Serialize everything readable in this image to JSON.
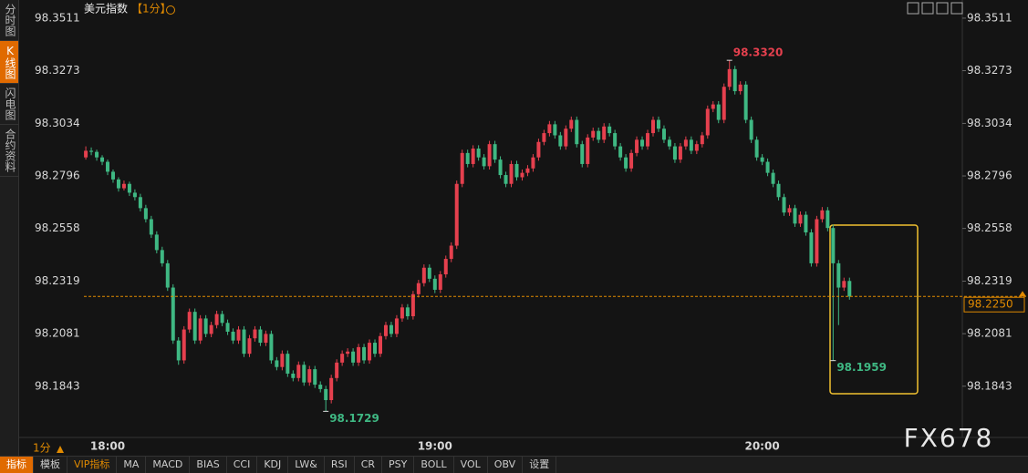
{
  "sidebar_tabs": [
    "分时图",
    "K线图",
    "闪电图",
    "合约资料"
  ],
  "header": {
    "title": "美元指数",
    "period": "【1分】"
  },
  "period_switch": "1分",
  "toolbar": [
    "指标",
    "模板",
    "VIP指标",
    "MA",
    "MACD",
    "BIAS",
    "CCI",
    "KDJ",
    "LW&",
    "RSI",
    "CR",
    "PSY",
    "BOLL",
    "VOL",
    "OBV",
    "设置"
  ],
  "watermark": "FX678",
  "chart_data": {
    "type": "candlestick",
    "up_color": "#e5404e",
    "down_color": "#3fb883",
    "ylim": [
      98.1652,
      98.3552
    ],
    "yticks": [
      98.3511,
      98.3273,
      98.3034,
      98.2796,
      98.2558,
      98.2319,
      98.2081,
      98.1843
    ],
    "categories": [
      null,
      null,
      null,
      null,
      "18:00",
      null,
      null,
      null,
      null,
      null,
      null,
      null,
      null,
      null,
      null,
      null,
      null,
      null,
      null,
      null,
      null,
      null,
      null,
      null,
      null,
      null,
      null,
      null,
      null,
      null,
      null,
      null,
      null,
      null,
      null,
      null,
      null,
      null,
      null,
      null,
      null,
      null,
      null,
      null,
      null,
      null,
      null,
      null,
      null,
      null,
      null,
      null,
      null,
      null,
      null,
      null,
      null,
      null,
      null,
      null,
      null,
      null,
      null,
      null,
      "19:00",
      null,
      null,
      null,
      null,
      null,
      null,
      null,
      null,
      null,
      null,
      null,
      null,
      null,
      null,
      null,
      null,
      null,
      null,
      null,
      null,
      null,
      null,
      null,
      null,
      null,
      null,
      null,
      null,
      null,
      null,
      null,
      null,
      null,
      null,
      null,
      null,
      null,
      null,
      null,
      null,
      null,
      null,
      null,
      null,
      null,
      null,
      null,
      null,
      null,
      null,
      null,
      null,
      null,
      null,
      null,
      null,
      null,
      null,
      null,
      "20:00",
      null,
      null,
      null,
      null,
      null,
      null,
      null,
      null,
      null,
      null,
      null,
      null,
      null,
      null,
      null,
      null
    ],
    "open": [
      98.288,
      98.291,
      98.2905,
      98.288,
      98.286,
      98.2815,
      98.278,
      98.274,
      98.276,
      98.272,
      98.27,
      98.265,
      98.26,
      98.253,
      98.246,
      98.24,
      98.229,
      98.205,
      98.196,
      98.21,
      98.218,
      98.205,
      98.215,
      98.208,
      98.212,
      98.217,
      98.213,
      98.209,
      98.205,
      98.21,
      98.199,
      98.206,
      98.21,
      98.204,
      98.208,
      98.196,
      98.193,
      98.199,
      98.19,
      98.188,
      98.194,
      98.186,
      98.192,
      98.185,
      98.183,
      98.178,
      98.188,
      98.195,
      98.199,
      98.2,
      98.195,
      98.202,
      98.196,
      98.204,
      98.199,
      98.207,
      98.212,
      98.208,
      98.215,
      98.22,
      98.216,
      98.226,
      98.231,
      98.238,
      98.233,
      98.228,
      98.235,
      98.242,
      98.248,
      98.276,
      98.29,
      98.285,
      98.292,
      98.288,
      98.284,
      98.294,
      98.287,
      98.28,
      98.276,
      98.285,
      98.279,
      98.281,
      98.283,
      98.288,
      98.295,
      98.299,
      98.303,
      98.298,
      98.293,
      98.301,
      98.305,
      98.294,
      98.285,
      98.297,
      98.3,
      98.296,
      98.302,
      98.299,
      98.293,
      98.288,
      98.283,
      98.29,
      98.296,
      98.293,
      98.299,
      98.305,
      98.301,
      98.296,
      98.293,
      98.287,
      98.293,
      98.296,
      98.291,
      98.294,
      98.298,
      98.31,
      98.312,
      98.305,
      98.32,
      98.328,
      98.318,
      98.321,
      98.305,
      98.296,
      98.288,
      98.286,
      98.281,
      98.276,
      98.27,
      98.263,
      98.265,
      98.258,
      98.262,
      98.254,
      98.24,
      98.26,
      98.264,
      98.256,
      98.24,
      98.229,
      98.232
    ],
    "high": [
      98.293,
      98.2925,
      98.2915,
      98.289,
      98.287,
      98.2825,
      98.279,
      98.2775,
      98.277,
      98.2735,
      98.2715,
      98.2665,
      98.2615,
      98.2545,
      98.2475,
      98.2415,
      98.2305,
      98.2065,
      98.2115,
      98.2195,
      98.2195,
      98.2165,
      98.2165,
      98.2135,
      98.2185,
      98.2185,
      98.2145,
      98.2105,
      98.2115,
      98.2115,
      98.2075,
      98.2115,
      98.2115,
      98.2095,
      98.2095,
      98.1975,
      98.2005,
      98.2005,
      98.1915,
      98.1955,
      98.1955,
      98.1935,
      98.1935,
      98.1865,
      98.1845,
      98.1895,
      98.1965,
      98.2005,
      98.2015,
      98.2015,
      98.2035,
      98.2035,
      98.2055,
      98.2055,
      98.2085,
      98.2135,
      98.2135,
      98.2165,
      98.2215,
      98.2215,
      98.2275,
      98.2325,
      98.2395,
      98.2395,
      98.2345,
      98.2365,
      98.2435,
      98.2495,
      98.2775,
      98.2915,
      98.2915,
      98.2935,
      98.2935,
      98.2895,
      98.2955,
      98.2955,
      98.2885,
      98.2815,
      98.2865,
      98.2865,
      98.2825,
      98.2845,
      98.2895,
      98.2965,
      98.3005,
      98.3045,
      98.3045,
      98.2995,
      98.3025,
      98.3065,
      98.3065,
      98.2955,
      98.2985,
      98.3015,
      98.3015,
      98.3035,
      98.3035,
      98.3005,
      98.2945,
      98.2895,
      98.2915,
      98.2975,
      98.2975,
      98.3005,
      98.3065,
      98.3065,
      98.3025,
      98.2975,
      98.2945,
      98.2945,
      98.2975,
      98.2975,
      98.2955,
      98.2995,
      98.3115,
      98.3135,
      98.3135,
      98.3215,
      98.332,
      98.3295,
      98.3225,
      98.3225,
      98.3065,
      98.2975,
      98.2895,
      98.2875,
      98.2825,
      98.2775,
      98.2715,
      98.2665,
      98.2665,
      98.2635,
      98.2635,
      98.2555,
      98.2615,
      98.2655,
      98.2655,
      98.2575,
      98.2415,
      98.2335,
      98.2335
    ],
    "low": [
      98.287,
      98.289,
      98.2865,
      98.2845,
      98.28,
      98.2765,
      98.2725,
      98.273,
      98.2705,
      98.2685,
      98.2635,
      98.2585,
      98.2515,
      98.2445,
      98.2385,
      98.2275,
      98.2035,
      98.194,
      98.1945,
      98.2085,
      98.2035,
      98.2035,
      98.2065,
      98.2065,
      98.2105,
      98.2115,
      98.2075,
      98.2035,
      98.2035,
      98.1975,
      98.1975,
      98.2045,
      98.2025,
      98.2025,
      98.1945,
      98.1915,
      98.1915,
      98.1885,
      98.1865,
      98.1865,
      98.1845,
      98.1845,
      98.1835,
      98.1815,
      98.1729,
      98.1765,
      98.1865,
      98.1935,
      98.1975,
      98.1935,
      98.1935,
      98.1945,
      98.1945,
      98.1975,
      98.1975,
      98.2055,
      98.2065,
      98.2065,
      98.2135,
      98.2145,
      98.2145,
      98.2245,
      98.2295,
      98.2315,
      98.2265,
      98.2265,
      98.2335,
      98.2405,
      98.2465,
      98.2745,
      98.2835,
      98.2835,
      98.2865,
      98.2825,
      98.2825,
      98.2855,
      98.2785,
      98.2745,
      98.2745,
      98.2775,
      98.2775,
      98.2795,
      98.2815,
      98.2865,
      98.2935,
      98.2975,
      98.2965,
      98.2915,
      98.2915,
      98.2995,
      98.2925,
      98.2835,
      98.2835,
      98.2955,
      98.2945,
      98.2945,
      98.2975,
      98.2915,
      98.2865,
      98.2815,
      98.2815,
      98.2885,
      98.2915,
      98.2915,
      98.2975,
      98.2995,
      98.2945,
      98.2915,
      98.2855,
      98.2855,
      98.2915,
      98.2895,
      98.2895,
      98.2925,
      98.2965,
      98.3085,
      98.3035,
      98.3035,
      98.3185,
      98.3165,
      98.3165,
      98.3035,
      98.2945,
      98.2865,
      98.2845,
      98.2795,
      98.2745,
      98.2685,
      98.2615,
      98.2615,
      98.2565,
      98.2565,
      98.2525,
      98.2385,
      98.2385,
      98.2585,
      98.2545,
      98.1959,
      98.212,
      98.2275,
      98.2235
    ],
    "close": [
      98.291,
      98.2905,
      98.288,
      98.286,
      98.2815,
      98.278,
      98.274,
      98.276,
      98.272,
      98.27,
      98.265,
      98.26,
      98.253,
      98.246,
      98.24,
      98.229,
      98.205,
      98.196,
      98.21,
      98.218,
      98.205,
      98.215,
      98.208,
      98.212,
      98.217,
      98.213,
      98.209,
      98.205,
      98.21,
      98.199,
      98.206,
      98.21,
      98.204,
      98.208,
      98.196,
      98.193,
      98.199,
      98.19,
      98.188,
      98.194,
      98.186,
      98.192,
      98.185,
      98.183,
      98.178,
      98.188,
      98.195,
      98.199,
      98.2,
      98.195,
      98.202,
      98.196,
      98.204,
      98.199,
      98.207,
      98.212,
      98.208,
      98.215,
      98.22,
      98.216,
      98.226,
      98.231,
      98.238,
      98.233,
      98.228,
      98.235,
      98.242,
      98.248,
      98.276,
      98.29,
      98.285,
      98.292,
      98.288,
      98.284,
      98.294,
      98.287,
      98.28,
      98.276,
      98.285,
      98.279,
      98.281,
      98.283,
      98.288,
      98.295,
      98.299,
      98.303,
      98.298,
      98.293,
      98.301,
      98.305,
      98.294,
      98.285,
      98.297,
      98.3,
      98.296,
      98.302,
      98.299,
      98.293,
      98.288,
      98.283,
      98.29,
      98.296,
      98.293,
      98.299,
      98.305,
      98.301,
      98.296,
      98.293,
      98.287,
      98.293,
      98.296,
      98.291,
      98.294,
      98.298,
      98.31,
      98.312,
      98.305,
      98.32,
      98.328,
      98.318,
      98.321,
      98.305,
      98.296,
      98.288,
      98.286,
      98.281,
      98.276,
      98.27,
      98.263,
      98.265,
      98.258,
      98.262,
      98.254,
      98.24,
      98.26,
      98.264,
      98.256,
      98.24,
      98.229,
      98.232,
      98.225
    ],
    "annotations": [
      {
        "value": 98.332,
        "label": "98.3320",
        "color": "#e5404e"
      },
      {
        "value": 98.1729,
        "label": "98.1729",
        "color": "#3fb883"
      },
      {
        "value": 98.1959,
        "label": "98.1959",
        "color": "#3fb883"
      }
    ],
    "last": {
      "value": 98.225,
      "label": "98.2250",
      "color": "#e08a00"
    }
  }
}
